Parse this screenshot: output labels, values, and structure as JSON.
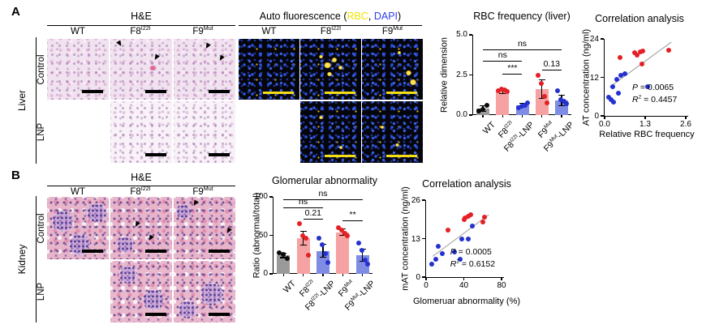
{
  "figure": {
    "panel_a_label": "A",
    "panel_b_label": "B"
  },
  "panel_a": {
    "he": {
      "title": "H&E",
      "organ": "Liver",
      "rows": [
        "Control",
        "LNP"
      ],
      "columns": [
        "WT",
        "F8^{I22I}",
        "F9^{Mut}"
      ]
    },
    "fluo": {
      "title_segments": [
        {
          "text": "Auto fluorescence (",
          "color": "#000000"
        },
        {
          "text": "RBC",
          "color": "#efe204"
        },
        {
          "text": ", ",
          "color": "#000000"
        },
        {
          "text": "DAPI",
          "color": "#2d3ef0"
        },
        {
          "text": ")",
          "color": "#000000"
        }
      ],
      "columns": [
        "WT",
        "F8^{I22I}",
        "F9^{Mut}"
      ]
    }
  },
  "panel_b": {
    "he": {
      "title": "H&E",
      "organ": "Kidney",
      "rows": [
        "Control",
        "LNP"
      ],
      "columns": [
        "WT",
        "F8^{I22I}",
        "F9^{Mut}"
      ]
    }
  },
  "colors": {
    "bar_gray": "#9a9a9a",
    "bar_pink": "#f7a2a2",
    "bar_blue": "#7f8ce3",
    "dot_black": "#0a0a0a",
    "dot_red": "#e41f25",
    "dot_blue": "#2430cf",
    "trend_line": "#9a9a9a",
    "rbc_yellow": "#f2de12",
    "dapi_blue": "#2d3ef0"
  },
  "chart_data": [
    {
      "type": "bar",
      "title": "RBC frequency (liver)",
      "ylabel": "Relative dimension",
      "ylim": [
        0,
        5
      ],
      "yticks": [
        0,
        2.5,
        5
      ],
      "ytick_labels": [
        "0.0",
        "2.5",
        "5.0"
      ],
      "categories": [
        "WT",
        "F8^{I22I}",
        "F8^{I22I}-LNP",
        "F9^{Mut}",
        "F9^{Mut}-LNP"
      ],
      "values": [
        0.42,
        1.45,
        0.62,
        1.62,
        0.9
      ],
      "errors": [
        0.18,
        0.12,
        0.1,
        0.58,
        0.33
      ],
      "bar_colors": [
        "#9a9a9a",
        "#f7a2a2",
        "#7f8ce3",
        "#f7a2a2",
        "#7f8ce3"
      ],
      "dot_colors": [
        "#0a0a0a",
        "#e41f25",
        "#2430cf",
        "#e41f25",
        "#2430cf"
      ],
      "dots": [
        [
          0.25,
          0.35,
          0.6
        ],
        [
          1.5,
          1.62,
          1.55,
          1.45
        ],
        [
          0.45,
          0.55,
          0.62,
          0.75
        ],
        [
          2.45,
          1.95,
          1.15,
          0.78
        ],
        [
          1.5,
          0.95,
          0.85,
          0.72
        ]
      ],
      "sig": [
        {
          "from": 0,
          "to": 4,
          "y": 4.1,
          "label": "ns"
        },
        {
          "from": 0,
          "to": 2,
          "y": 3.4,
          "label": "ns"
        },
        {
          "from": 1,
          "to": 2,
          "y": 2.6,
          "label": "***"
        },
        {
          "from": 3,
          "to": 4,
          "y": 2.85,
          "label": "0.13"
        }
      ]
    },
    {
      "type": "scatter",
      "title": "Correlation analysis",
      "ylabel": "AT concentration (ng/ml)",
      "xlabel": "Relative RBC frequency",
      "xlim": [
        0,
        2.6
      ],
      "xticks": [
        0,
        1.3,
        2.6
      ],
      "xtick_labels": [
        "0.0",
        "1.3",
        "2.6"
      ],
      "ylim": [
        0,
        24
      ],
      "yticks": [
        0,
        12,
        24
      ],
      "ytick_labels": [
        "0",
        "12",
        "24"
      ],
      "colors": {
        "red": "#e41f25",
        "blue": "#2430cf"
      },
      "points": {
        "red": [
          [
            0.5,
            18.2
          ],
          [
            0.95,
            19.6
          ],
          [
            1.05,
            19.0
          ],
          [
            1.15,
            20.0
          ],
          [
            1.22,
            20.3
          ],
          [
            1.2,
            16.2
          ],
          [
            2.05,
            20.5
          ]
        ],
        "blue": [
          [
            0.13,
            5.9
          ],
          [
            0.2,
            5.0
          ],
          [
            0.28,
            4.4
          ],
          [
            0.27,
            9.2
          ],
          [
            0.38,
            11.4
          ],
          [
            0.43,
            7.0
          ],
          [
            0.52,
            12.7
          ],
          [
            0.66,
            13.2
          ],
          [
            1.38,
            9.0
          ]
        ]
      },
      "line": [
        [
          0.15,
          9.2
        ],
        [
          2.12,
          23.2
        ]
      ],
      "stats": {
        "p": "0.0065",
        "r2": "0.4457"
      }
    },
    {
      "type": "bar",
      "title": "Glomerular abnormality",
      "ylabel": "Ratio (abnormal/total)",
      "ylim": [
        0,
        100
      ],
      "yticks": [
        0,
        50,
        100
      ],
      "ytick_labels": [
        "0",
        "50",
        "100"
      ],
      "categories": [
        "WT",
        "F8^{I22I}",
        "F8^{I22I}-LNP",
        "F9^{Mut}",
        "F9^{Mut}-LNP"
      ],
      "values": [
        24,
        46,
        30,
        54,
        24
      ],
      "errors": [
        3,
        9,
        8,
        4,
        8
      ],
      "bar_colors": [
        "#9a9a9a",
        "#f7a2a2",
        "#7f8ce3",
        "#f7a2a2",
        "#7f8ce3"
      ],
      "dot_colors": [
        "#0a0a0a",
        "#e41f25",
        "#2430cf",
        "#e41f25",
        "#2430cf"
      ],
      "dots": [
        [
          27,
          25,
          20
        ],
        [
          65,
          50,
          46,
          24
        ],
        [
          46,
          38,
          26,
          15
        ],
        [
          60,
          57,
          53,
          50
        ],
        [
          40,
          31,
          18,
          13
        ]
      ],
      "sig": [
        {
          "from": 0,
          "to": 4,
          "y": 97,
          "label": "ns"
        },
        {
          "from": 0,
          "to": 2,
          "y": 86,
          "label": "ns"
        },
        {
          "from": 1,
          "to": 2,
          "y": 72,
          "label": "0.21"
        },
        {
          "from": 3,
          "to": 4,
          "y": 70,
          "label": "**"
        }
      ]
    },
    {
      "type": "scatter",
      "title": "Correlation analysis",
      "ylabel": "mAT concentration (ng/ml)",
      "xlabel": "Glomeruar abnormality (%)",
      "xlim": [
        0,
        80
      ],
      "xticks": [
        0,
        40,
        80
      ],
      "xtick_labels": [
        "0",
        "40",
        "80"
      ],
      "ylim": [
        0,
        26
      ],
      "yticks": [
        0,
        13,
        26
      ],
      "ytick_labels": [
        "0",
        "13",
        "26"
      ],
      "colors": {
        "red": "#e41f25",
        "blue": "#2430cf"
      },
      "points": {
        "red": [
          [
            23,
            16
          ],
          [
            40,
            19.3
          ],
          [
            41.5,
            20
          ],
          [
            45,
            20.6
          ],
          [
            47,
            21
          ],
          [
            60,
            18.6
          ],
          [
            62,
            20.2
          ]
        ],
        "blue": [
          [
            6,
            4.5
          ],
          [
            10,
            6
          ],
          [
            13,
            10.5
          ],
          [
            17,
            8
          ],
          [
            30,
            8.5
          ],
          [
            36,
            6
          ],
          [
            38,
            12.8
          ],
          [
            45,
            12.8
          ],
          [
            49,
            17.2
          ]
        ]
      },
      "line": [
        [
          7,
          7
        ],
        [
          66,
          21
        ]
      ],
      "stats": {
        "p": "0.0005",
        "r2": "0.6152"
      }
    }
  ]
}
